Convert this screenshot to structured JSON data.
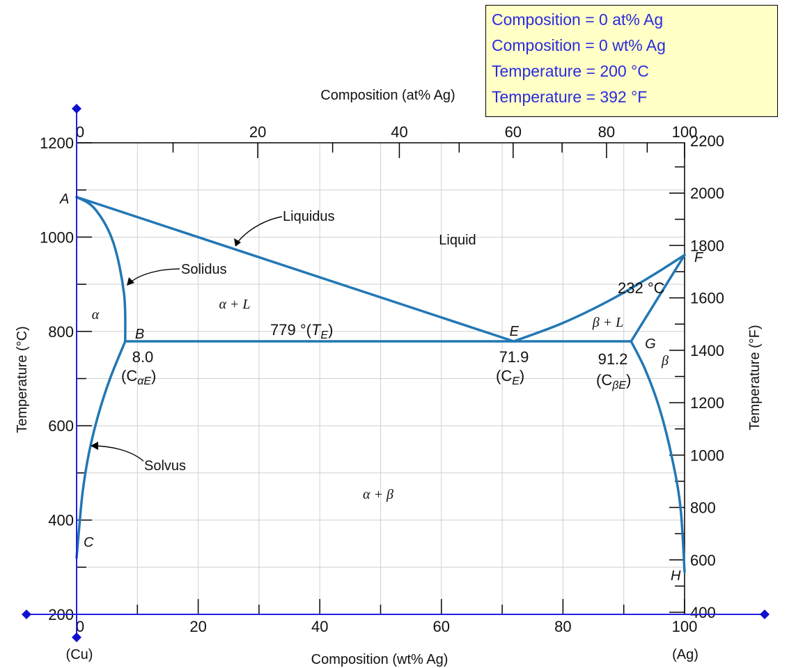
{
  "readout": {
    "lines": [
      "Composition = 0 at% Ag",
      "Composition = 0 wt% Ag",
      "Temperature = 200 °C",
      "Temperature = 392 °F"
    ]
  },
  "colors": {
    "phase_line": "#2277b4",
    "cursor": "#1f1fe0",
    "readout_bg": "#ffffc6",
    "readout_text": "#2a2ae0"
  },
  "chart_data": {
    "type": "line",
    "title": "",
    "xlabel": "Composition (wt% Ag)",
    "xlabel_top": "Composition (at% Ag)",
    "ylabel": "Temperature (°C)",
    "ylabel_right": "Temperature (°F)",
    "xlim": [
      0,
      100
    ],
    "ylim": [
      200,
      1200
    ],
    "grid": true,
    "x_ticks": [
      "0",
      "20",
      "40",
      "60",
      "80",
      "100"
    ],
    "x_ticks_values": [
      0,
      20,
      40,
      60,
      80,
      100
    ],
    "x_ticks_top": [
      "0",
      "20",
      "40",
      "60",
      "80",
      "100"
    ],
    "x_ticks_top_values": [
      0,
      20,
      40,
      60,
      80,
      100
    ],
    "y_ticks": [
      "200",
      "400",
      "600",
      "800",
      "1000",
      "1200"
    ],
    "y_ticks_values": [
      200,
      400,
      600,
      800,
      1000,
      1200
    ],
    "y_ticks_right": [
      "400",
      "600",
      "800",
      "1000",
      "1200",
      "1400",
      "1600",
      "1800",
      "2000",
      "2200"
    ],
    "y_ticks_right_values": [
      400,
      600,
      800,
      1000,
      1200,
      1400,
      1600,
      1800,
      2000,
      2200
    ],
    "element_labels": {
      "left": "(Cu)",
      "right": "(Ag)"
    },
    "series": [
      {
        "name": "Liquidus (Cu side)",
        "x": [
          0,
          71.9
        ],
        "y": [
          1085,
          779
        ]
      },
      {
        "name": "Liquidus (Ag side)",
        "x": [
          71.9,
          80,
          88,
          95,
          100
        ],
        "y": [
          779,
          818,
          868,
          921,
          962
        ]
      },
      {
        "name": "Solidus (alpha)",
        "x": [
          0,
          3,
          6,
          7.8,
          8.0
        ],
        "y": [
          1085,
          1060,
          990,
          880,
          779
        ]
      },
      {
        "name": "Eutectic isotherm",
        "x": [
          8.0,
          91.2
        ],
        "y": [
          779,
          779
        ]
      },
      {
        "name": "Solidus (beta)",
        "x": [
          91.2,
          100
        ],
        "y": [
          779,
          962
        ]
      },
      {
        "name": "Solvus (alpha)",
        "x": [
          8.0,
          5.5,
          3.5,
          2.0,
          1.0,
          0.4,
          0
        ],
        "y": [
          779,
          700,
          620,
          540,
          460,
          380,
          320
        ]
      },
      {
        "name": "Solvus (beta)",
        "x": [
          91.2,
          93.5,
          95.8,
          97.8,
          99.3,
          100
        ],
        "y": [
          779,
          720,
          640,
          540,
          430,
          290
        ]
      }
    ],
    "points": [
      {
        "label": "A",
        "x": 0,
        "y": 1085
      },
      {
        "label": "B",
        "x": 8.0,
        "y": 779
      },
      {
        "label": "C",
        "x": 0,
        "y": 320
      },
      {
        "label": "E",
        "x": 71.9,
        "y": 779
      },
      {
        "label": "F",
        "x": 100,
        "y": 962
      },
      {
        "label": "G",
        "x": 91.2,
        "y": 779
      },
      {
        "label": "H",
        "x": 100,
        "y": 290
      }
    ],
    "annotations": {
      "liquidus": "Liquidus",
      "solidus": "Solidus",
      "solvus": "Solvus",
      "liquid": "Liquid",
      "alpha": "α",
      "alpha_l": "α + L",
      "beta_l": "β + L",
      "beta": "β",
      "alpha_beta": "α + β",
      "eutectic_temp": "779 °(",
      "eutectic_sym": "T",
      "eutectic_sub": "E",
      "eutectic_close": ")",
      "temp_232": "232 °C",
      "comp_alpha_value": "8.0",
      "comp_alpha_c": "(C",
      "comp_alpha_sub": "αE",
      "comp_alpha_close": ")",
      "comp_e_value": "71.9",
      "comp_e_c": "(C",
      "comp_e_sub": "E",
      "comp_e_close": ")",
      "comp_beta_value": "91.2",
      "comp_beta_c": "(C",
      "comp_beta_sub": "βE",
      "comp_beta_close": ")"
    },
    "cursor": {
      "x_wt_pct": 0,
      "temperature_c": 200
    }
  }
}
